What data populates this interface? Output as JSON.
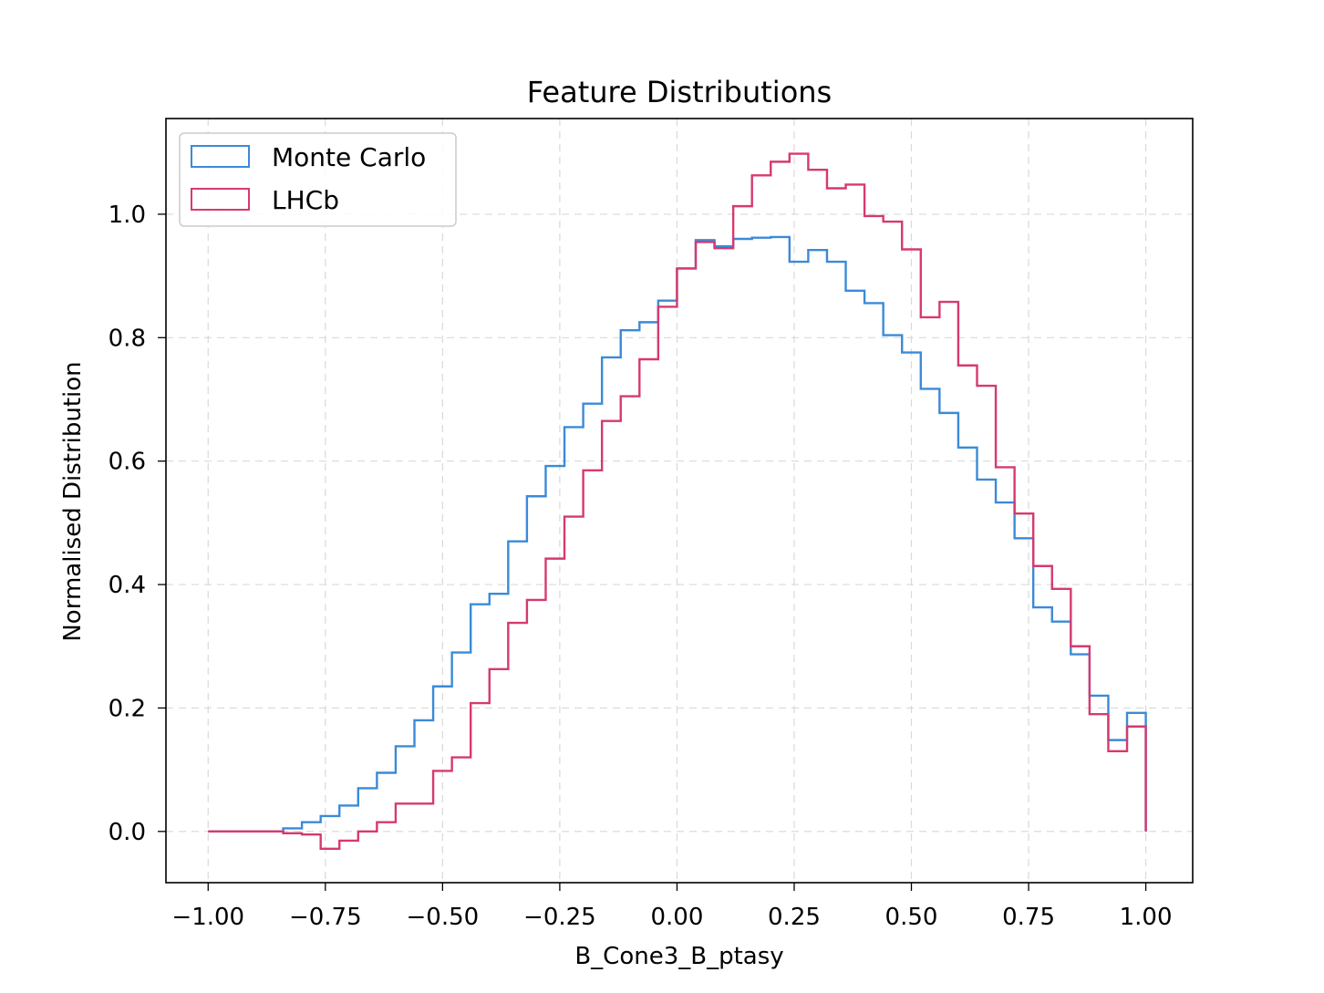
{
  "chart_data": {
    "type": "step-histogram",
    "title": "Feature Distributions",
    "xlabel": "B_Cone3_B_ptasy",
    "ylabel": "Normalised Distribution",
    "xlim": [
      -1.09,
      1.1
    ],
    "ylim": [
      -0.083,
      1.155
    ],
    "xticks": [
      -1.0,
      -0.75,
      -0.5,
      -0.25,
      0.0,
      0.25,
      0.5,
      0.75,
      1.0
    ],
    "xtick_labels": [
      "−1.00",
      "−0.75",
      "−0.50",
      "−0.25",
      "0.00",
      "0.25",
      "0.50",
      "0.75",
      "1.00"
    ],
    "yticks": [
      0.0,
      0.2,
      0.4,
      0.6,
      0.8,
      1.0
    ],
    "ytick_labels": [
      "0.0",
      "0.2",
      "0.4",
      "0.6",
      "0.8",
      "1.0"
    ],
    "grid": true,
    "legend_position": "top-left",
    "bin_edges": [
      -1.0,
      -0.96,
      -0.92,
      -0.88,
      -0.84,
      -0.8,
      -0.76,
      -0.72,
      -0.68,
      -0.64,
      -0.6,
      -0.56,
      -0.52,
      -0.48,
      -0.44,
      -0.4,
      -0.36,
      -0.32,
      -0.28,
      -0.24,
      -0.2,
      -0.16,
      -0.12,
      -0.08,
      -0.04,
      0.0,
      0.04,
      0.08,
      0.12,
      0.16,
      0.2,
      0.24,
      0.28,
      0.32,
      0.36,
      0.4,
      0.44,
      0.48,
      0.52,
      0.56,
      0.6,
      0.64,
      0.68,
      0.72,
      0.76,
      0.8,
      0.84,
      0.88,
      0.92,
      0.96,
      1.0
    ],
    "series": [
      {
        "name": "Monte Carlo",
        "color": "#3b8ad8",
        "values": [
          0.0,
          0.0,
          0.0,
          0.0,
          0.005,
          0.015,
          0.025,
          0.042,
          0.07,
          0.095,
          0.138,
          0.18,
          0.235,
          0.29,
          0.368,
          0.385,
          0.47,
          0.543,
          0.592,
          0.655,
          0.693,
          0.768,
          0.812,
          0.825,
          0.86,
          0.912,
          0.958,
          0.948,
          0.96,
          0.962,
          0.963,
          0.923,
          0.942,
          0.923,
          0.876,
          0.856,
          0.804,
          0.776,
          0.717,
          0.678,
          0.622,
          0.57,
          0.533,
          0.475,
          0.363,
          0.34,
          0.287,
          0.22,
          0.148,
          0.192
        ]
      },
      {
        "name": "LHCb",
        "color": "#d63a6e",
        "values": [
          0.0,
          0.0,
          0.0,
          0.0,
          -0.003,
          -0.005,
          -0.028,
          -0.015,
          0.0,
          0.015,
          0.045,
          0.045,
          0.098,
          0.12,
          0.208,
          0.263,
          0.338,
          0.375,
          0.442,
          0.51,
          0.585,
          0.665,
          0.705,
          0.765,
          0.85,
          0.912,
          0.955,
          0.945,
          1.013,
          1.063,
          1.085,
          1.098,
          1.072,
          1.042,
          1.048,
          0.997,
          0.988,
          0.943,
          0.833,
          0.858,
          0.755,
          0.722,
          0.59,
          0.515,
          0.43,
          0.393,
          0.3,
          0.19,
          0.13,
          0.17
        ]
      }
    ]
  }
}
